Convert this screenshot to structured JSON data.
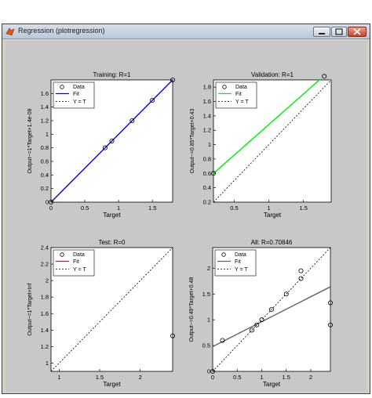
{
  "window": {
    "title": "Regression (plotregression)",
    "minimize_icon": "minimize-icon",
    "maximize_icon": "maximize-icon",
    "close_icon": "close-icon"
  },
  "legend_labels": [
    "Data",
    "Fit",
    "Y = T"
  ],
  "colors": {
    "training_fit": "#0000ff",
    "validation_fit": "#00ee00",
    "test_fit": "#ff0000",
    "all_fit": "#606060",
    "background": "#c8c8c8"
  },
  "chart_data": [
    {
      "type": "scatter",
      "title": "Training: R=1",
      "xlabel": "Target",
      "ylabel": "Output~=1*Target+1.4e-08",
      "xlim": [
        0,
        1.8
      ],
      "ylim": [
        0,
        1.8
      ],
      "xticks": [
        "0",
        "0.5",
        "1",
        "1.5"
      ],
      "xtick_values": [
        0,
        0.5,
        1,
        1.5
      ],
      "yticks": [
        "0",
        "0.2",
        "0.4",
        "0.6",
        "0.8",
        "1",
        "1.2",
        "1.4",
        "1.6"
      ],
      "ytick_values": [
        0,
        0.2,
        0.4,
        0.6,
        0.8,
        1,
        1.2,
        1.4,
        1.6
      ],
      "series": [
        {
          "name": "Data",
          "x": [
            0,
            0.8,
            0.9,
            1.2,
            1.5,
            1.8
          ],
          "y": [
            0,
            0.8,
            0.9,
            1.2,
            1.5,
            1.8
          ]
        },
        {
          "name": "Fit",
          "x": [
            0,
            1.8
          ],
          "y": [
            0,
            1.8
          ]
        },
        {
          "name": "Y = T",
          "x": [
            0,
            1.8
          ],
          "y": [
            0,
            1.8
          ]
        }
      ]
    },
    {
      "type": "scatter",
      "title": "Validation: R=1",
      "xlabel": "Target",
      "ylabel": "Output~=0.85*Target+0.43",
      "xlim": [
        0.2,
        1.9
      ],
      "ylim": [
        0.2,
        1.9
      ],
      "xticks": [
        "0.5",
        "1",
        "1.5"
      ],
      "xtick_values": [
        0.5,
        1,
        1.5
      ],
      "yticks": [
        "0.2",
        "0.4",
        "0.6",
        "0.8",
        "1",
        "1.2",
        "1.4",
        "1.6",
        "1.8"
      ],
      "ytick_values": [
        0.2,
        0.4,
        0.6,
        0.8,
        1,
        1.2,
        1.4,
        1.6,
        1.8
      ],
      "series": [
        {
          "name": "Data",
          "x": [
            0.2,
            1.8
          ],
          "y": [
            0.6,
            1.95
          ]
        },
        {
          "name": "Fit",
          "x": [
            0.2,
            1.8
          ],
          "y": [
            0.6,
            1.96
          ]
        },
        {
          "name": "Y = T",
          "x": [
            0.2,
            1.9
          ],
          "y": [
            0.2,
            1.9
          ]
        }
      ]
    },
    {
      "type": "scatter",
      "title": "Test: R=0",
      "xlabel": "Target",
      "ylabel": "Output~=1*Target+Inf",
      "xlim": [
        0.9,
        2.4
      ],
      "ylim": [
        0.9,
        2.4
      ],
      "xticks": [
        "1",
        "1.5",
        "2"
      ],
      "xtick_values": [
        1,
        1.5,
        2
      ],
      "yticks": [
        "1",
        "1.2",
        "1.4",
        "1.6",
        "1.8",
        "2",
        "2.2",
        "2.4"
      ],
      "ytick_values": [
        1,
        1.2,
        1.4,
        1.6,
        1.8,
        2,
        2.2,
        2.4
      ],
      "series": [
        {
          "name": "Data",
          "x": [
            2.4
          ],
          "y": [
            1.33
          ]
        },
        {
          "name": "Fit",
          "x": [],
          "y": []
        },
        {
          "name": "Y = T",
          "x": [
            0.9,
            2.4
          ],
          "y": [
            0.9,
            2.4
          ]
        }
      ]
    },
    {
      "type": "scatter",
      "title": "All: R=0.70846",
      "xlabel": "Target",
      "ylabel": "Output~=0.49*Target+0.48",
      "xlim": [
        0,
        2.4
      ],
      "ylim": [
        0,
        2.4
      ],
      "xticks": [
        "0",
        "0.5",
        "1",
        "1.5",
        "2"
      ],
      "xtick_values": [
        0,
        0.5,
        1,
        1.5,
        2
      ],
      "yticks": [
        "0",
        "0.5",
        "1",
        "1.5",
        "2"
      ],
      "ytick_values": [
        0,
        0.5,
        1,
        1.5,
        2
      ],
      "series": [
        {
          "name": "Data",
          "x": [
            0,
            0.2,
            0.8,
            0.9,
            1.0,
            1.2,
            1.5,
            1.8,
            1.8,
            2.4,
            2.4
          ],
          "y": [
            0,
            0.6,
            0.8,
            0.9,
            1.0,
            1.2,
            1.5,
            1.8,
            1.95,
            1.33,
            0.9
          ]
        },
        {
          "name": "Fit",
          "x": [
            0,
            2.4
          ],
          "y": [
            0.48,
            1.64
          ]
        },
        {
          "name": "Y = T",
          "x": [
            0,
            2.4
          ],
          "y": [
            0,
            2.4
          ]
        }
      ]
    }
  ]
}
